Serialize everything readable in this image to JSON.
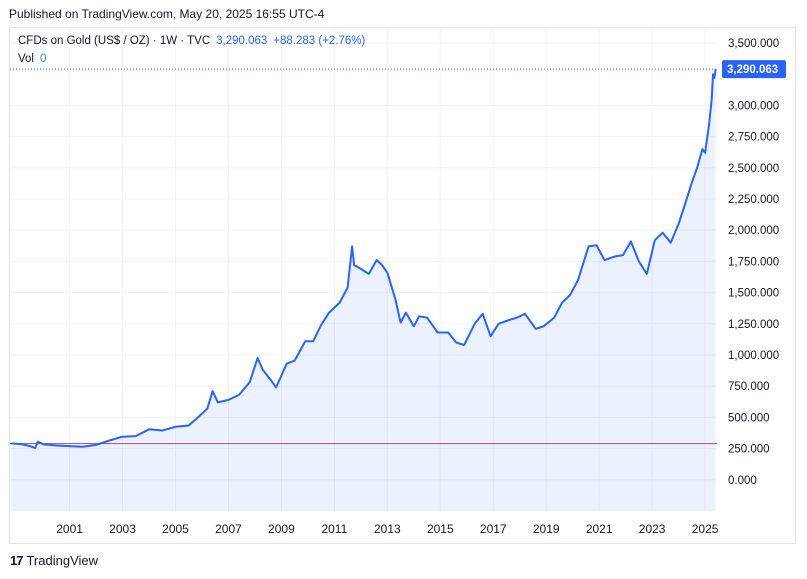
{
  "header": {
    "published": "Published on TradingView.com, May 20, 2025 16:55 UTC-4"
  },
  "legend": {
    "symbol": "CFDs on Gold (US$ / OZ) · 1W · TVC",
    "last": "3,290.063",
    "change": "+88.283 (+2.76%)",
    "vol_label": "Vol",
    "vol_value": "0"
  },
  "price_tag": "3,290.063",
  "footer": {
    "logo_mark": "17",
    "logo_text": "TradingView"
  },
  "colors": {
    "line": "#2962ff",
    "area": "#2962ff",
    "baseline": "#b2485d",
    "grid": "#f0f3fa"
  },
  "chart_data": {
    "type": "area",
    "title": "CFDs on Gold (US$ / OZ)",
    "xlabel": "",
    "ylabel": "",
    "x_ticks": [
      "2001",
      "2003",
      "2005",
      "2007",
      "2009",
      "2011",
      "2013",
      "2015",
      "2017",
      "2019",
      "2021",
      "2023",
      "2025"
    ],
    "y_ticks": [
      "0.000",
      "250.000",
      "500.000",
      "750.000",
      "1,000.000",
      "1,250.000",
      "1,500.000",
      "1,750.000",
      "2,000.000",
      "2,250.000",
      "2,500.000",
      "2,750.000",
      "3,000.000",
      "3,500.000"
    ],
    "xlim": [
      1998.75,
      2025.45
    ],
    "ylim": [
      -250,
      3620
    ],
    "baseline_value": 290,
    "last_value": 3290.063,
    "grid": true,
    "x": [
      1998.8,
      1999.2,
      1999.5,
      1999.7,
      1999.8,
      2000.0,
      2000.5,
      2001.0,
      2001.5,
      2002.0,
      2002.5,
      2003.0,
      2003.5,
      2004.0,
      2004.5,
      2005.0,
      2005.5,
      2005.9,
      2006.2,
      2006.4,
      2006.6,
      2007.0,
      2007.4,
      2007.8,
      2008.1,
      2008.3,
      2008.6,
      2008.8,
      2009.2,
      2009.5,
      2009.9,
      2010.2,
      2010.5,
      2010.8,
      2011.2,
      2011.5,
      2011.67,
      2011.75,
      2012.0,
      2012.3,
      2012.6,
      2012.8,
      2013.0,
      2013.3,
      2013.5,
      2013.7,
      2014.0,
      2014.2,
      2014.5,
      2014.9,
      2015.3,
      2015.6,
      2015.9,
      2016.3,
      2016.6,
      2016.9,
      2017.2,
      2017.6,
      2017.9,
      2018.2,
      2018.6,
      2018.9,
      2019.3,
      2019.6,
      2019.9,
      2020.2,
      2020.6,
      2020.9,
      2021.2,
      2021.6,
      2021.9,
      2022.2,
      2022.5,
      2022.8,
      2023.1,
      2023.4,
      2023.7,
      2024.0,
      2024.2,
      2024.5,
      2024.7,
      2024.9,
      2025.0,
      2025.15,
      2025.25,
      2025.3,
      2025.35,
      2025.4
    ],
    "values": [
      292,
      285,
      270,
      255,
      305,
      285,
      275,
      270,
      265,
      280,
      315,
      345,
      350,
      405,
      395,
      425,
      435,
      510,
      570,
      710,
      620,
      640,
      680,
      780,
      975,
      880,
      800,
      740,
      930,
      955,
      1110,
      1110,
      1240,
      1340,
      1420,
      1540,
      1870,
      1720,
      1690,
      1650,
      1760,
      1720,
      1660,
      1450,
      1260,
      1340,
      1230,
      1310,
      1300,
      1180,
      1180,
      1100,
      1080,
      1250,
      1330,
      1150,
      1250,
      1280,
      1300,
      1330,
      1210,
      1230,
      1300,
      1420,
      1480,
      1600,
      1870,
      1880,
      1760,
      1790,
      1800,
      1910,
      1750,
      1650,
      1920,
      1980,
      1900,
      2050,
      2180,
      2380,
      2500,
      2650,
      2620,
      2850,
      3050,
      3250,
      3220,
      3290
    ]
  }
}
